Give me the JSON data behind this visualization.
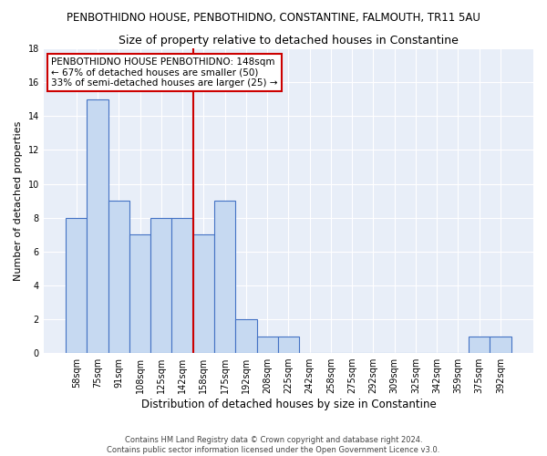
{
  "title": "PENBOTHIDNO HOUSE, PENBOTHIDNO, CONSTANTINE, FALMOUTH, TR11 5AU",
  "subtitle": "Size of property relative to detached houses in Constantine",
  "xlabel": "Distribution of detached houses by size in Constantine",
  "ylabel": "Number of detached properties",
  "categories": [
    "58sqm",
    "75sqm",
    "91sqm",
    "108sqm",
    "125sqm",
    "142sqm",
    "158sqm",
    "175sqm",
    "192sqm",
    "208sqm",
    "225sqm",
    "242sqm",
    "258sqm",
    "275sqm",
    "292sqm",
    "309sqm",
    "325sqm",
    "342sqm",
    "359sqm",
    "375sqm",
    "392sqm"
  ],
  "values": [
    8,
    15,
    9,
    7,
    8,
    8,
    7,
    9,
    2,
    1,
    1,
    0,
    0,
    0,
    0,
    0,
    0,
    0,
    0,
    1,
    1
  ],
  "bar_color": "#c6d9f1",
  "bar_edge_color": "#4472c4",
  "vline_x": 5.5,
  "vline_color": "#cc0000",
  "ylim": [
    0,
    18
  ],
  "yticks": [
    0,
    2,
    4,
    6,
    8,
    10,
    12,
    14,
    16,
    18
  ],
  "annotation_lines": [
    "PENBOTHIDNO HOUSE PENBOTHIDNO: 148sqm",
    "← 67% of detached houses are smaller (50)",
    "33% of semi-detached houses are larger (25) →"
  ],
  "annotation_box_color": "#ffffff",
  "annotation_box_edge_color": "#cc0000",
  "footer_line1": "Contains HM Land Registry data © Crown copyright and database right 2024.",
  "footer_line2": "Contains public sector information licensed under the Open Government Licence v3.0.",
  "fig_bg_color": "#ffffff",
  "ax_bg_color": "#e8eef8",
  "grid_color": "#ffffff",
  "title_fontsize": 8.5,
  "subtitle_fontsize": 9,
  "ylabel_fontsize": 8,
  "xlabel_fontsize": 8.5,
  "tick_fontsize": 7,
  "footer_fontsize": 6,
  "annotation_fontsize": 7.5
}
